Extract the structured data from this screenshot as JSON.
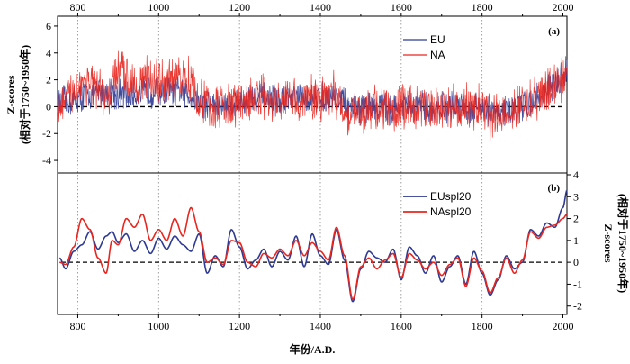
{
  "chart_data": {
    "type": "line",
    "xlabel": "年份/A.D.",
    "xlim": [
      750,
      2010
    ],
    "xticks": [
      800,
      1000,
      1200,
      1400,
      1600,
      1800,
      2000
    ],
    "panels": [
      {
        "label": "(a)",
        "ylabel_line1": "Z-scores",
        "ylabel_line2": "(相对于1750~1950年)",
        "ylabel_side": "left",
        "ylim": [
          -4.8,
          6.6
        ],
        "yticks": [
          -4,
          -2,
          0,
          2,
          4,
          6
        ],
        "zero_line": "dashed",
        "legend_position": "top-right",
        "series": [
          {
            "name": "EU",
            "color": "#2e3a93",
            "style": "noisy",
            "x": [
              750,
              775,
              800,
              825,
              850,
              875,
              900,
              925,
              950,
              975,
              1000,
              1025,
              1050,
              1075,
              1100,
              1125,
              1150,
              1175,
              1200,
              1225,
              1250,
              1275,
              1300,
              1325,
              1350,
              1375,
              1400,
              1425,
              1450,
              1475,
              1500,
              1525,
              1550,
              1575,
              1600,
              1625,
              1650,
              1675,
              1700,
              1725,
              1750,
              1775,
              1800,
              1825,
              1850,
              1875,
              1900,
              1925,
              1950,
              1975,
              2000,
              2010
            ],
            "values": [
              0.2,
              0.4,
              0.6,
              0.9,
              1.0,
              1.1,
              0.9,
              0.8,
              1.0,
              1.1,
              1.0,
              1.2,
              1.1,
              0.9,
              0.3,
              0.2,
              0.1,
              0.2,
              0.4,
              0.6,
              0.7,
              0.5,
              0.4,
              0.6,
              0.5,
              0.6,
              0.7,
              0.9,
              0.6,
              -0.3,
              -0.2,
              0.1,
              0.0,
              -0.2,
              0.1,
              -0.1,
              0.0,
              -0.3,
              -0.1,
              0.0,
              0.1,
              -0.1,
              0.1,
              -0.6,
              -0.3,
              -0.2,
              0.0,
              0.4,
              0.9,
              1.6,
              2.2,
              2.9
            ],
            "amplitude": 1.0
          },
          {
            "name": "NA",
            "color": "#e8261f",
            "style": "noisy",
            "x": [
              750,
              775,
              800,
              825,
              850,
              875,
              900,
              925,
              950,
              975,
              1000,
              1025,
              1050,
              1075,
              1100,
              1125,
              1150,
              1175,
              1200,
              1225,
              1250,
              1275,
              1300,
              1325,
              1350,
              1375,
              1400,
              1425,
              1450,
              1475,
              1500,
              1525,
              1550,
              1575,
              1600,
              1625,
              1650,
              1675,
              1700,
              1725,
              1750,
              1775,
              1800,
              1825,
              1850,
              1875,
              1900,
              1925,
              1950,
              1975,
              2000,
              2010
            ],
            "values": [
              0.0,
              0.5,
              1.6,
              2.0,
              1.0,
              0.6,
              2.6,
              2.2,
              1.8,
              2.0,
              1.9,
              1.7,
              1.9,
              2.2,
              0.4,
              0.1,
              -0.1,
              0.0,
              0.2,
              0.5,
              0.7,
              0.4,
              0.2,
              0.5,
              0.4,
              0.6,
              0.7,
              1.0,
              0.3,
              -0.6,
              -0.4,
              0.0,
              -0.1,
              -0.3,
              0.1,
              -0.1,
              0.1,
              -0.2,
              -0.1,
              0.1,
              0.0,
              -0.2,
              0.0,
              -0.9,
              -0.5,
              -0.3,
              0.0,
              0.3,
              0.8,
              1.5,
              2.0,
              2.5
            ],
            "amplitude": 1.5
          }
        ]
      },
      {
        "label": "(b)",
        "ylabel_line1": "Z-scores",
        "ylabel_line2": "(相对于1750~1950年)",
        "ylabel_side": "right",
        "ylim": [
          -2.3,
          4.0
        ],
        "yticks": [
          -2,
          -1,
          0,
          1,
          2,
          3,
          4
        ],
        "zero_line": "dashed",
        "legend_position": "top-right",
        "series": [
          {
            "name": "EUspl20",
            "color": "#2e3a93",
            "style": "smooth",
            "x": [
              755,
              770,
              790,
              810,
              830,
              850,
              870,
              885,
              900,
              920,
              940,
              960,
              980,
              1000,
              1020,
              1040,
              1060,
              1080,
              1100,
              1120,
              1140,
              1160,
              1180,
              1200,
              1220,
              1240,
              1260,
              1280,
              1300,
              1320,
              1340,
              1360,
              1380,
              1400,
              1420,
              1440,
              1460,
              1480,
              1500,
              1520,
              1540,
              1560,
              1580,
              1600,
              1620,
              1640,
              1660,
              1680,
              1700,
              1720,
              1740,
              1760,
              1780,
              1800,
              1820,
              1840,
              1860,
              1880,
              1900,
              1920,
              1940,
              1960,
              1980,
              2000,
              2010
            ],
            "values": [
              0.2,
              -0.3,
              0.5,
              0.8,
              1.4,
              0.6,
              1.2,
              1.4,
              0.9,
              1.3,
              0.5,
              1.0,
              0.4,
              1.1,
              0.6,
              1.2,
              0.8,
              0.5,
              1.3,
              -0.5,
              0.3,
              -0.2,
              1.5,
              0.7,
              -0.3,
              0.1,
              0.6,
              -0.2,
              0.5,
              0.1,
              1.2,
              -0.2,
              1.3,
              0.3,
              -0.1,
              1.5,
              0.1,
              -1.8,
              -0.3,
              0.5,
              0.2,
              0.0,
              0.6,
              -0.8,
              0.7,
              0.3,
              -0.5,
              0.3,
              -0.9,
              -0.2,
              0.3,
              -1.0,
              0.5,
              -0.5,
              -1.5,
              -0.8,
              0.3,
              -0.3,
              0.0,
              1.5,
              1.2,
              1.8,
              1.6,
              2.5,
              3.3
            ]
          },
          {
            "name": "NAspl20",
            "color": "#e8261f",
            "style": "smooth",
            "x": [
              755,
              770,
              790,
              810,
              830,
              850,
              870,
              885,
              900,
              920,
              940,
              960,
              980,
              1000,
              1020,
              1040,
              1060,
              1080,
              1100,
              1120,
              1140,
              1160,
              1180,
              1200,
              1220,
              1240,
              1260,
              1280,
              1300,
              1320,
              1340,
              1360,
              1380,
              1400,
              1420,
              1440,
              1460,
              1480,
              1500,
              1520,
              1540,
              1560,
              1580,
              1600,
              1620,
              1640,
              1660,
              1680,
              1700,
              1720,
              1740,
              1760,
              1780,
              1800,
              1820,
              1840,
              1860,
              1880,
              1900,
              1920,
              1940,
              1960,
              1980,
              2000,
              2010
            ],
            "values": [
              0.0,
              -0.1,
              0.7,
              2.0,
              1.5,
              0.2,
              -0.5,
              1.0,
              0.8,
              2.0,
              1.6,
              2.2,
              1.0,
              1.5,
              1.0,
              2.0,
              1.2,
              2.5,
              1.4,
              0.0,
              0.2,
              -0.1,
              1.0,
              0.9,
              0.0,
              -0.2,
              0.4,
              0.2,
              0.6,
              0.3,
              1.0,
              0.3,
              0.9,
              0.5,
              0.1,
              1.6,
              0.3,
              -1.7,
              -0.2,
              0.2,
              -0.3,
              0.1,
              0.4,
              -0.7,
              0.4,
              0.1,
              -0.3,
              0.0,
              -0.6,
              -0.1,
              0.2,
              -1.1,
              0.2,
              -0.4,
              -1.4,
              -0.7,
              0.2,
              -0.5,
              0.1,
              1.4,
              1.1,
              1.6,
              1.7,
              2.0,
              2.2
            ]
          }
        ]
      }
    ]
  }
}
